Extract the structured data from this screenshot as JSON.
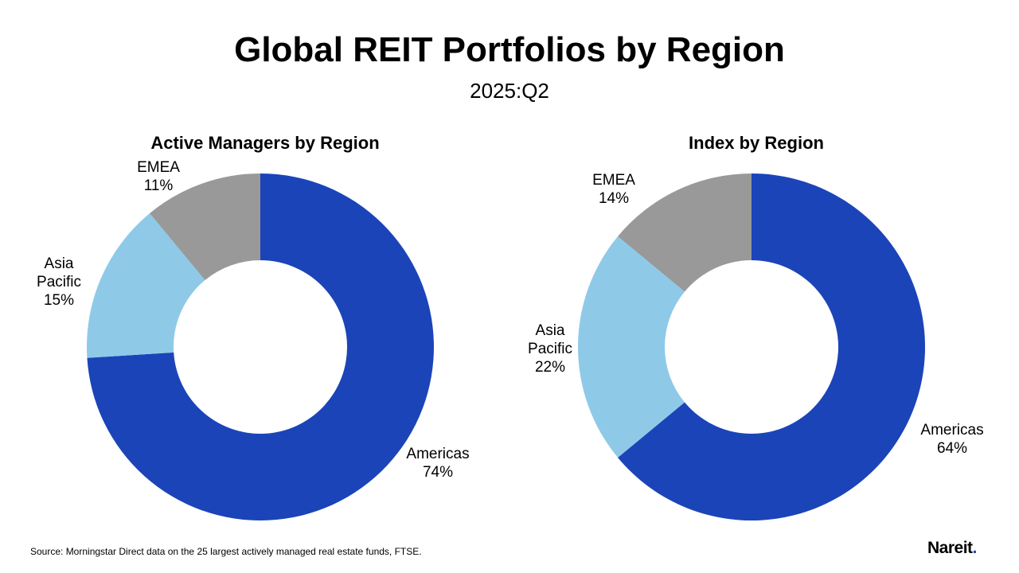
{
  "title": "Global REIT Portfolios by Region",
  "subtitle": "2025:Q2",
  "source": "Source: Morningstar Direct data on the 25 largest actively managed real estate funds, FTSE.",
  "logo": "Nareit",
  "colors": {
    "Americas": "#1b44b8",
    "Asia Pacific": "#8ecae8",
    "EMEA": "#999999"
  },
  "chart_data": [
    {
      "type": "pie",
      "donut": true,
      "title": "Active Managers by Region",
      "categories": [
        "Americas",
        "Asia\nPacific",
        "EMEA"
      ],
      "values": [
        74,
        15,
        11
      ],
      "labels": [
        "Americas\n74%",
        "Asia\nPacific\n15%",
        "EMEA\n11%"
      ]
    },
    {
      "type": "pie",
      "donut": true,
      "title": "Index by Region",
      "categories": [
        "Americas",
        "Asia\nPacific",
        "EMEA"
      ],
      "values": [
        64,
        22,
        14
      ],
      "labels": [
        "Americas\n64%",
        "Asia\nPacific\n22%",
        "EMEA\n14%"
      ]
    }
  ]
}
